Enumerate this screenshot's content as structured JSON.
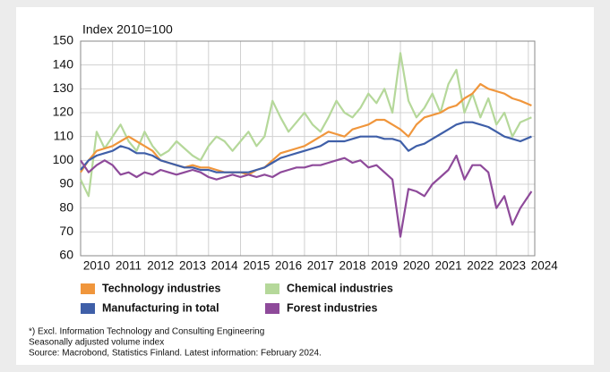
{
  "chart_data": {
    "type": "line",
    "ylabel": "Index 2010=100",
    "notes": [
      "*) Excl. Information Technology and Consulting Engineering",
      "Seasonally adjusted volume index",
      "Source: Macrobond, Statistics Finland. Latest information: February 2024."
    ],
    "x": [
      2010,
      2010.25,
      2010.5,
      2010.75,
      2011,
      2011.25,
      2011.5,
      2011.75,
      2012,
      2012.25,
      2012.5,
      2012.75,
      2013,
      2013.25,
      2013.5,
      2013.75,
      2014,
      2014.25,
      2014.5,
      2014.75,
      2015,
      2015.25,
      2015.5,
      2015.75,
      2016,
      2016.25,
      2016.5,
      2016.75,
      2017,
      2017.25,
      2017.5,
      2017.75,
      2018,
      2018.25,
      2018.5,
      2018.75,
      2019,
      2019.25,
      2019.5,
      2019.75,
      2020,
      2020.25,
      2020.5,
      2020.75,
      2021,
      2021.25,
      2021.5,
      2021.75,
      2022,
      2022.25,
      2022.5,
      2022.75,
      2023,
      2023.25,
      2023.5,
      2023.75,
      2024.1
    ],
    "series": [
      {
        "name": "Chemical industries",
        "color": "#b5d89a",
        "values": [
          92,
          85,
          112,
          105,
          110,
          115,
          108,
          104,
          112,
          106,
          102,
          104,
          108,
          105,
          102,
          100,
          106,
          110,
          108,
          104,
          108,
          112,
          106,
          110,
          125,
          118,
          112,
          116,
          120,
          115,
          112,
          118,
          125,
          120,
          118,
          122,
          128,
          124,
          130,
          120,
          145,
          125,
          118,
          122,
          128,
          120,
          132,
          138,
          120,
          128,
          118,
          126,
          115,
          120,
          110,
          116,
          118
        ]
      },
      {
        "name": "Technology industries",
        "color": "#f0963c",
        "values": [
          95,
          100,
          104,
          105,
          106,
          108,
          110,
          108,
          106,
          104,
          100,
          99,
          98,
          97,
          98,
          97,
          97,
          96,
          95,
          95,
          95,
          94,
          96,
          97,
          100,
          103,
          104,
          105,
          106,
          108,
          110,
          112,
          111,
          110,
          113,
          114,
          115,
          117,
          117,
          115,
          113,
          110,
          115,
          118,
          119,
          120,
          122,
          123,
          126,
          128,
          132,
          130,
          129,
          128,
          126,
          125,
          123
        ]
      },
      {
        "name": "Manufacturing in total",
        "color": "#3f5fa8",
        "values": [
          96,
          100,
          102,
          103,
          104,
          106,
          105,
          103,
          103,
          102,
          100,
          99,
          98,
          97,
          97,
          96,
          96,
          95,
          95,
          95,
          95,
          95,
          96,
          97,
          99,
          101,
          102,
          103,
          104,
          105,
          106,
          108,
          108,
          108,
          109,
          110,
          110,
          110,
          109,
          109,
          108,
          104,
          106,
          107,
          109,
          111,
          113,
          115,
          116,
          116,
          115,
          114,
          112,
          110,
          109,
          108,
          110
        ]
      },
      {
        "name": "Forest industries",
        "color": "#8e4a9a",
        "values": [
          100,
          95,
          98,
          100,
          98,
          94,
          95,
          93,
          95,
          94,
          96,
          95,
          94,
          95,
          96,
          95,
          93,
          92,
          93,
          94,
          93,
          94,
          93,
          94,
          93,
          95,
          96,
          97,
          97,
          98,
          98,
          99,
          100,
          101,
          99,
          100,
          97,
          98,
          95,
          92,
          68,
          88,
          87,
          85,
          90,
          93,
          96,
          102,
          92,
          98,
          98,
          95,
          80,
          85,
          73,
          80,
          87
        ]
      }
    ],
    "legend_order": [
      1,
      0,
      2,
      3
    ],
    "xlim": [
      2010,
      2024.2
    ],
    "xticks": [
      2010,
      2011,
      2012,
      2013,
      2014,
      2015,
      2016,
      2017,
      2018,
      2019,
      2020,
      2021,
      2022,
      2023,
      2024
    ],
    "ylim": [
      60,
      150
    ],
    "yticks": [
      60,
      70,
      80,
      90,
      100,
      110,
      120,
      130,
      140,
      150
    ],
    "grid": true
  }
}
